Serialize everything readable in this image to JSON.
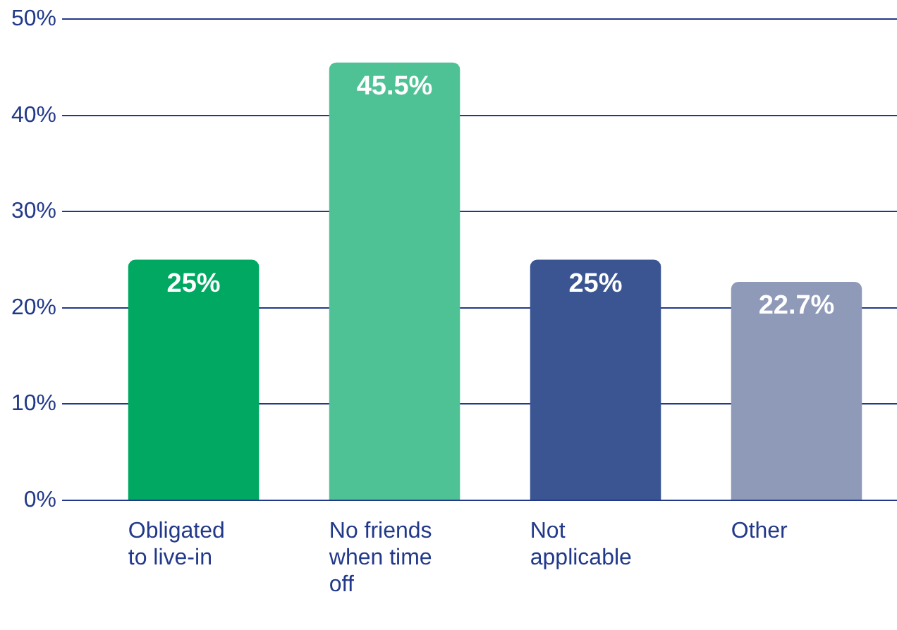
{
  "chart_data": {
    "type": "bar",
    "categories": [
      "Obligated to live-in",
      "No friends when time off",
      "Not applicable",
      "Other"
    ],
    "values": [
      25,
      45.5,
      25,
      22.7
    ],
    "colors": [
      "#00a862",
      "#4fc295",
      "#3a5592",
      "#8f9ab8"
    ],
    "value_labels": [
      "25%",
      "45.5%",
      "25%",
      "22.7%"
    ],
    "ylim": [
      0,
      50
    ],
    "yticks": [
      {
        "value": 0,
        "label": "0%"
      },
      {
        "value": 10,
        "label": "10%"
      },
      {
        "value": 20,
        "label": "20%"
      },
      {
        "value": 30,
        "label": "30%"
      },
      {
        "value": 40,
        "label": "40%"
      },
      {
        "value": 50,
        "label": "50%"
      }
    ],
    "grid": "y",
    "legend": false
  }
}
